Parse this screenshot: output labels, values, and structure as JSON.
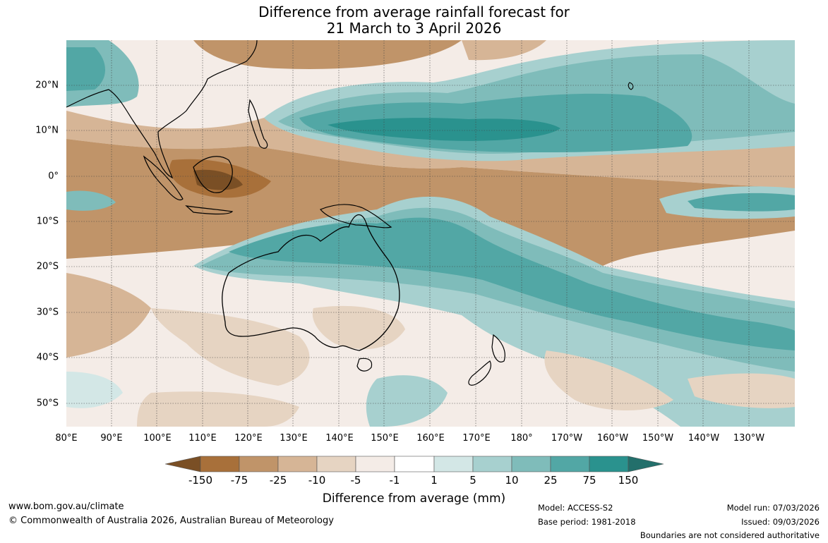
{
  "title": {
    "line1": "Difference from average rainfall forecast for",
    "line2": "21 March to 3 April 2026"
  },
  "map": {
    "lat_labels": [
      "20°N",
      "10°N",
      "0°",
      "10°S",
      "20°S",
      "30°S",
      "40°S",
      "50°S"
    ],
    "lon_labels": [
      "80°E",
      "90°E",
      "100°E",
      "110°E",
      "120°E",
      "130°E",
      "140°E",
      "150°E",
      "160°E",
      "170°E",
      "180°",
      "170°W",
      "160°W",
      "150°W",
      "140°W",
      "130°W"
    ]
  },
  "colorbar": {
    "tick_labels": [
      "-150",
      "-75",
      "-25",
      "-10",
      "-5",
      "-1",
      "1",
      "5",
      "10",
      "25",
      "75",
      "150"
    ],
    "colors": [
      "#7a4f25",
      "#a8703a",
      "#c09469",
      "#d6b596",
      "#e6d4c2",
      "#f4ece7",
      "#ffffff",
      "#d3e7e6",
      "#a7d0cf",
      "#7fbcba",
      "#52a7a5",
      "#2a928e",
      "#236f6b"
    ],
    "title": "Difference from average (mm)"
  },
  "footer": {
    "website": "www.bom.gov.au/climate",
    "copyright": "© Commonwealth of Australia 2026, Australian Bureau of Meteorology",
    "model": "Model: ACCESS-S2",
    "base_period": "Base period: 1981-2018",
    "model_run": "Model run: 07/03/2026",
    "issued": "Issued: 09/03/2026",
    "disclaimer": "Boundaries are not considered authoritative"
  }
}
